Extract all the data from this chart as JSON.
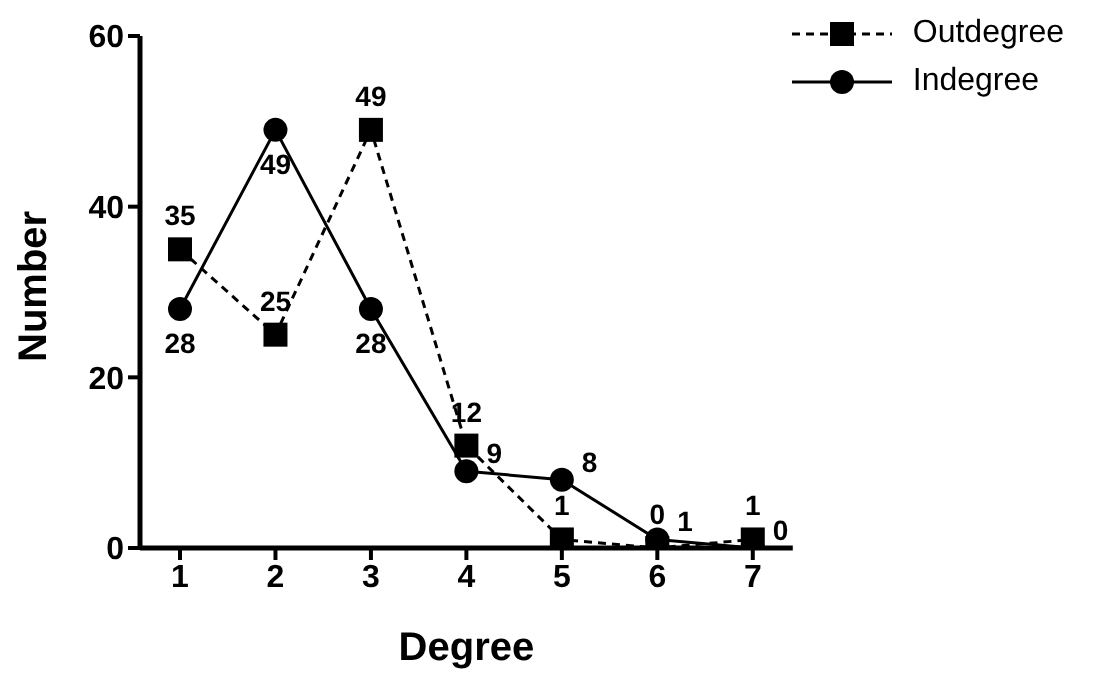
{
  "chart_data": {
    "type": "line",
    "xlabel": "Degree",
    "ylabel": "Number",
    "categories": [
      "1",
      "2",
      "3",
      "4",
      "5",
      "6",
      "7"
    ],
    "series": [
      {
        "name": "Outdegree",
        "color": "#000000",
        "values": [
          35,
          25,
          49,
          12,
          1,
          0,
          1
        ],
        "marker": "square",
        "line_style": "dashed"
      },
      {
        "name": "Indegree",
        "color": "#000000",
        "values": [
          28,
          49,
          28,
          9,
          8,
          1,
          0
        ],
        "marker": "circle",
        "line_style": "solid"
      }
    ],
    "ylim": [
      0,
      60
    ],
    "yticks": [
      0,
      20,
      40,
      60
    ],
    "grid": false,
    "legend": "top right",
    "data_labels": true
  }
}
